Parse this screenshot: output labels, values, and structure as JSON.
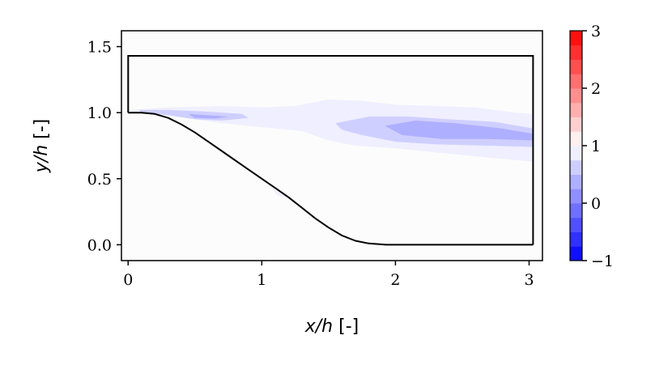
{
  "chart_data": {
    "type": "heatmap",
    "title": "",
    "xlabel_var": "x/h",
    "xlabel_unit": " [-]",
    "ylabel_var": "y/h",
    "ylabel_unit": " [-]",
    "xlim": [
      -0.05,
      3.1
    ],
    "ylim": [
      -0.12,
      1.62
    ],
    "xticks": [
      0,
      1,
      2,
      3
    ],
    "xtick_labels": [
      "0",
      "1",
      "2",
      "3"
    ],
    "yticks": [
      0.0,
      0.5,
      1.0,
      1.5
    ],
    "ytick_labels": [
      "0.0",
      "0.5",
      "1.0",
      "1.5"
    ],
    "grid": false,
    "colorbar": {
      "min": -1,
      "max": 3,
      "ticks": [
        -1,
        0,
        1,
        2,
        3
      ],
      "tick_labels": [
        "−1",
        "0",
        "1",
        "2",
        "3"
      ],
      "levels": 16,
      "colormap": "bwr",
      "low_color": "#0000ff",
      "mid_color": "#ffffff",
      "high_color": "#ff0000"
    },
    "domain_box": {
      "x": [
        0,
        3.03
      ],
      "y": [
        1.0,
        1.43
      ]
    },
    "hill_profile": {
      "x": [
        0.0,
        0.1,
        0.2,
        0.3,
        0.4,
        0.5,
        0.6,
        0.7,
        0.8,
        0.9,
        1.0,
        1.1,
        1.2,
        1.3,
        1.4,
        1.5,
        1.6,
        1.7,
        1.8,
        1.93,
        2.2,
        2.6,
        3.03
      ],
      "y": [
        1.0,
        1.0,
        0.99,
        0.96,
        0.91,
        0.85,
        0.78,
        0.71,
        0.64,
        0.57,
        0.5,
        0.43,
        0.36,
        0.28,
        0.2,
        0.13,
        0.07,
        0.03,
        0.01,
        0.0,
        0.0,
        0.0,
        0.0
      ]
    },
    "contour_regions": [
      {
        "name": "shear-layer-outer",
        "value": 0.9,
        "points": [
          [
            0.02,
            1.02
          ],
          [
            0.3,
            1.04
          ],
          [
            0.7,
            1.05
          ],
          [
            1.0,
            1.04
          ],
          [
            1.25,
            1.05
          ],
          [
            1.5,
            1.1
          ],
          [
            1.75,
            1.09
          ],
          [
            2.0,
            1.06
          ],
          [
            2.3,
            1.05
          ],
          [
            2.6,
            1.04
          ],
          [
            2.9,
            1.0
          ],
          [
            3.03,
            0.99
          ],
          [
            3.03,
            0.63
          ],
          [
            2.7,
            0.66
          ],
          [
            2.3,
            0.7
          ],
          [
            2.0,
            0.73
          ],
          [
            1.7,
            0.75
          ],
          [
            1.5,
            0.79
          ],
          [
            1.3,
            0.86
          ],
          [
            1.1,
            0.88
          ],
          [
            0.9,
            0.9
          ],
          [
            0.7,
            0.92
          ],
          [
            0.5,
            0.95
          ],
          [
            0.3,
            0.98
          ],
          [
            0.1,
            1.0
          ],
          [
            0.02,
            1.0
          ]
        ]
      },
      {
        "name": "upstream-core",
        "value": 0.65,
        "points": [
          [
            0.08,
            1.02
          ],
          [
            0.3,
            1.02
          ],
          [
            0.55,
            1.01
          ],
          [
            0.85,
            0.99
          ],
          [
            0.9,
            0.96
          ],
          [
            0.7,
            0.94
          ],
          [
            0.5,
            0.95
          ],
          [
            0.3,
            0.98
          ],
          [
            0.1,
            1.0
          ]
        ]
      },
      {
        "name": "upstream-inner",
        "value": 0.4,
        "points": [
          [
            0.45,
            0.99
          ],
          [
            0.6,
            0.98
          ],
          [
            0.75,
            0.97
          ],
          [
            0.65,
            0.955
          ],
          [
            0.5,
            0.96
          ]
        ]
      },
      {
        "name": "downstream-core",
        "value": 0.65,
        "points": [
          [
            1.55,
            0.92
          ],
          [
            1.8,
            0.97
          ],
          [
            2.1,
            0.97
          ],
          [
            2.4,
            0.95
          ],
          [
            2.75,
            0.93
          ],
          [
            3.03,
            0.88
          ],
          [
            3.03,
            0.74
          ],
          [
            2.7,
            0.75
          ],
          [
            2.3,
            0.76
          ],
          [
            2.0,
            0.78
          ],
          [
            1.75,
            0.83
          ],
          [
            1.6,
            0.87
          ]
        ]
      },
      {
        "name": "downstream-inner",
        "value": 0.4,
        "points": [
          [
            1.92,
            0.9
          ],
          [
            2.15,
            0.94
          ],
          [
            2.45,
            0.92
          ],
          [
            2.8,
            0.88
          ],
          [
            3.03,
            0.84
          ],
          [
            3.03,
            0.79
          ],
          [
            2.7,
            0.8
          ],
          [
            2.35,
            0.8
          ],
          [
            2.05,
            0.83
          ]
        ]
      },
      {
        "name": "separation-speck",
        "value": 0.75,
        "points": [
          [
            1.07,
            0.43
          ],
          [
            1.17,
            0.38
          ],
          [
            1.2,
            0.35
          ],
          [
            1.12,
            0.37
          ]
        ]
      }
    ]
  }
}
